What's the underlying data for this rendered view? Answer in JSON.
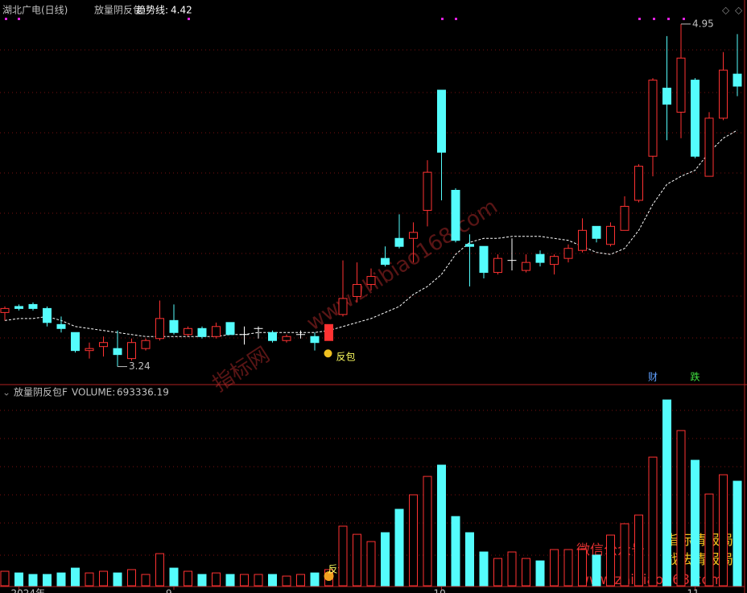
{
  "chart_data": {
    "type": "candlestick",
    "title": "湖北广电(日线)",
    "indicator": "放量阴反包",
    "trend": {
      "label": "趋势线:",
      "color": "#ffffff",
      "values": [
        3.47,
        3.48,
        3.48,
        3.49,
        3.47,
        3.44,
        3.43,
        3.42,
        3.41,
        3.4,
        3.39,
        3.39,
        3.39,
        3.39,
        3.39,
        3.39,
        3.4,
        3.4,
        3.41,
        3.41,
        3.41,
        3.41,
        3.41,
        3.42,
        3.44,
        3.46,
        3.48,
        3.51,
        3.54,
        3.6,
        3.64,
        3.7,
        3.8,
        3.86,
        3.88,
        3.88,
        3.89,
        3.89,
        3.89,
        3.88,
        3.87,
        3.84,
        3.81,
        3.8,
        3.83,
        3.92,
        4.05,
        4.15,
        4.19,
        4.22,
        4.31,
        4.38,
        4.42
      ]
    },
    "open": [
      3.51,
      3.54,
      3.55,
      3.53,
      3.45,
      3.41,
      3.32,
      3.34,
      3.33,
      3.28,
      3.33,
      3.38,
      3.47,
      3.4,
      3.43,
      3.39,
      3.46,
      3.4,
      3.43,
      3.41,
      3.37,
      3.4,
      3.39,
      3.37,
      3.5,
      3.59,
      3.65,
      3.78,
      3.88,
      3.88,
      4.02,
      4.62,
      4.12,
      3.85,
      3.84,
      3.71,
      3.77,
      3.72,
      3.8,
      3.75,
      3.78,
      3.82,
      3.94,
      3.85,
      3.92,
      4.07,
      4.29,
      4.63,
      4.51,
      4.67,
      4.19,
      4.48,
      4.7
    ],
    "high": [
      3.54,
      3.55,
      3.56,
      3.54,
      3.49,
      3.41,
      3.36,
      3.39,
      3.42,
      3.38,
      3.38,
      3.57,
      3.55,
      3.44,
      3.44,
      3.46,
      3.46,
      3.44,
      3.44,
      3.42,
      3.4,
      3.42,
      3.41,
      3.45,
      3.77,
      3.76,
      3.73,
      3.84,
      4.0,
      3.96,
      4.27,
      4.62,
      4.13,
      3.9,
      3.84,
      3.8,
      3.88,
      3.8,
      3.82,
      3.8,
      3.85,
      3.98,
      3.94,
      3.96,
      4.09,
      4.25,
      4.68,
      4.89,
      4.95,
      4.68,
      4.51,
      4.81,
      4.9
    ],
    "low": [
      3.47,
      3.52,
      3.52,
      3.44,
      3.41,
      3.31,
      3.28,
      3.29,
      3.24,
      3.27,
      3.32,
      3.37,
      3.4,
      3.39,
      3.38,
      3.38,
      3.4,
      3.35,
      3.38,
      3.36,
      3.36,
      3.38,
      3.32,
      3.37,
      3.49,
      3.56,
      3.62,
      3.74,
      3.83,
      3.76,
      3.94,
      4.07,
      3.86,
      3.64,
      3.68,
      3.7,
      3.72,
      3.71,
      3.74,
      3.7,
      3.76,
      3.81,
      3.86,
      3.84,
      3.92,
      4.06,
      4.19,
      4.37,
      4.38,
      4.28,
      4.19,
      4.47,
      4.59
    ],
    "close": [
      3.53,
      3.53,
      3.53,
      3.46,
      3.43,
      3.32,
      3.33,
      3.36,
      3.3,
      3.36,
      3.37,
      3.48,
      3.41,
      3.43,
      3.39,
      3.44,
      3.4,
      3.4,
      3.43,
      3.37,
      3.39,
      3.4,
      3.36,
      3.45,
      3.58,
      3.65,
      3.69,
      3.75,
      3.84,
      3.91,
      4.21,
      4.31,
      3.87,
      3.84,
      3.71,
      3.78,
      3.77,
      3.76,
      3.76,
      3.79,
      3.83,
      3.92,
      3.88,
      3.94,
      4.04,
      4.24,
      4.67,
      4.55,
      4.78,
      4.29,
      4.48,
      4.72,
      4.64
    ],
    "up_color": "#ff3232",
    "down_color": "#54fcfc",
    "flat_color": "#ffffff",
    "ylim": [
      3.15,
      5.07
    ],
    "volume": {
      "header": "放量阴反包F",
      "label": "VOLUME:",
      "ylim": [
        0,
        1323000
      ],
      "values": [
        96000,
        85000,
        75000,
        75000,
        85000,
        117000,
        85000,
        96000,
        85000,
        107000,
        75000,
        213000,
        117000,
        96000,
        75000,
        85000,
        75000,
        75000,
        75000,
        75000,
        64000,
        75000,
        85000,
        107000,
        395000,
        341000,
        293000,
        352000,
        507000,
        603000,
        725000,
        800000,
        459000,
        352000,
        224000,
        181000,
        224000,
        181000,
        165000,
        240000,
        240000,
        240000,
        203000,
        336000,
        411000,
        469000,
        853000,
        1232000,
        1029000,
        832000,
        608000,
        736000,
        693336.19
      ]
    },
    "categories": [
      null,
      "2024年",
      null,
      null,
      null,
      null,
      null,
      null,
      null,
      null,
      null,
      null,
      "9",
      null,
      null,
      null,
      null,
      null,
      null,
      null,
      null,
      null,
      null,
      null,
      null,
      null,
      null,
      null,
      null,
      null,
      null,
      "10",
      null,
      null,
      null,
      null,
      null,
      null,
      null,
      null,
      null,
      null,
      null,
      null,
      null,
      null,
      null,
      null,
      null,
      "11",
      null,
      null,
      null
    ],
    "signals": [
      null,
      null,
      null,
      null,
      null,
      null,
      null,
      null,
      null,
      null,
      null,
      null,
      null,
      null,
      null,
      null,
      null,
      null,
      null,
      null,
      null,
      null,
      null,
      "反包",
      null,
      null,
      null,
      null,
      null,
      null,
      null,
      null,
      null,
      null,
      null,
      null,
      null,
      null,
      null,
      null,
      null,
      null,
      null,
      null,
      null,
      null,
      null,
      null,
      null,
      null,
      null,
      null,
      null
    ],
    "tags": [
      null,
      null,
      null,
      null,
      null,
      null,
      null,
      null,
      null,
      null,
      null,
      null,
      null,
      null,
      null,
      null,
      null,
      null,
      null,
      null,
      null,
      null,
      null,
      null,
      null,
      null,
      null,
      null,
      null,
      null,
      null,
      null,
      null,
      null,
      null,
      null,
      null,
      null,
      null,
      null,
      null,
      null,
      null,
      null,
      null,
      null,
      "财",
      null,
      null,
      "跌",
      null,
      null,
      null
    ],
    "watermarks": [
      "www.zhibiao168.com",
      "指标网",
      "微信公众号",
      "指标情报局",
      "战法情报局",
      "www.zhibiao168.com"
    ]
  }
}
